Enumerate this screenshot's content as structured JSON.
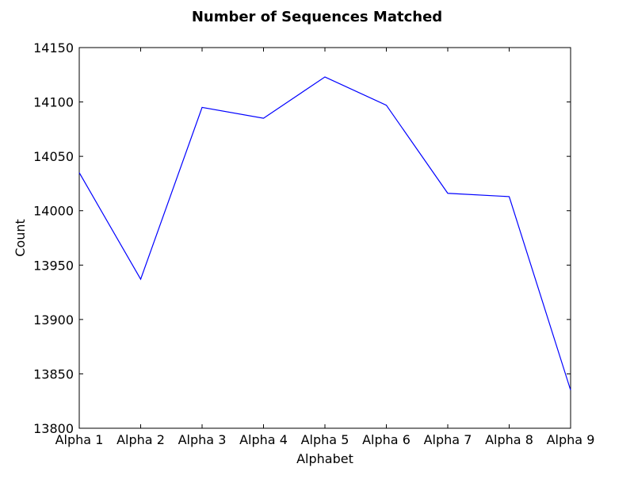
{
  "chart_data": {
    "type": "line",
    "title": "Number of Sequences Matched",
    "xlabel": "Alphabet",
    "ylabel": "Count",
    "categories": [
      "Alpha 1",
      "Alpha 2",
      "Alpha 3",
      "Alpha 4",
      "Alpha 5",
      "Alpha 6",
      "Alpha 7",
      "Alpha 8",
      "Alpha 9"
    ],
    "series": [
      {
        "values": [
          14035,
          13937,
          14095,
          14085,
          14123,
          14097,
          14016,
          14013,
          13835
        ],
        "color": "#0000ff"
      }
    ],
    "ylim": [
      13800,
      14150
    ],
    "yticks": [
      13800,
      13850,
      13900,
      13950,
      14000,
      14050,
      14100,
      14150
    ],
    "grid": false,
    "legend": "none"
  }
}
